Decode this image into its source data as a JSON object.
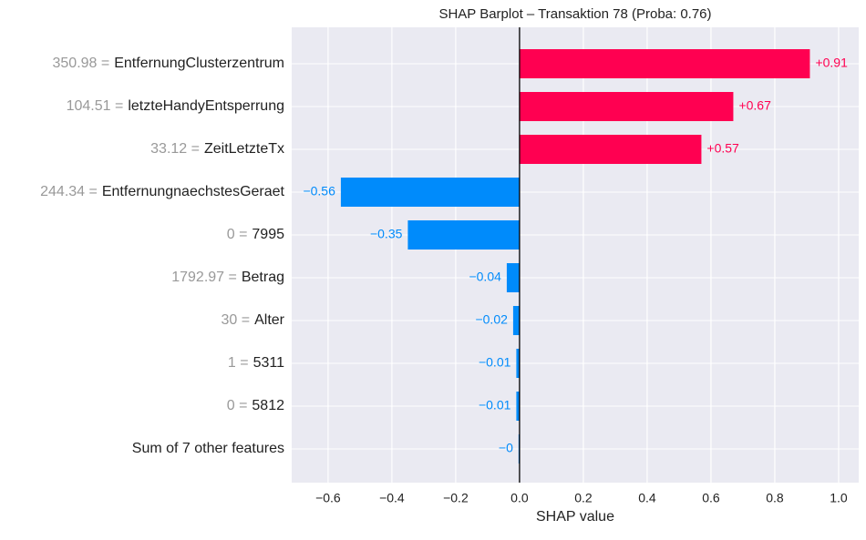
{
  "chart_data": {
    "type": "bar",
    "orientation": "horizontal",
    "title": "SHAP Barplot – Transaktion 78 (Proba: 0.76)",
    "x_label": "SHAP value",
    "feature_values": [
      "350.98 =",
      "104.51 =",
      "33.12 =",
      "244.34 =",
      "0 =",
      "1792.97 =",
      "30 =",
      "1 =",
      "0 =",
      null
    ],
    "categories": [
      "EntfernungClusterzentrum",
      "letzteHandyEntsperrung",
      "ZeitLetzteTx",
      "EntfernungnaechstesGeraet",
      "7995",
      "Betrag",
      "Alter",
      "5311",
      "5812",
      "Sum of 7 other features"
    ],
    "values": [
      0.91,
      0.67,
      0.57,
      -0.56,
      -0.35,
      -0.04,
      -0.02,
      -0.01,
      -0.01,
      -0.003
    ],
    "value_labels": [
      "+0.91",
      "+0.67",
      "+0.57",
      "−0.56",
      "−0.35",
      "−0.04",
      "−0.02",
      "−0.01",
      "−0.01",
      "−0"
    ],
    "positive_color": "#ff0051",
    "negative_color": "#008bfb",
    "xlim": [
      -0.714,
      1.063
    ],
    "xticks": [
      {
        "value": -0.6,
        "label": "−0.6"
      },
      {
        "value": -0.4,
        "label": "−0.4"
      },
      {
        "value": -0.2,
        "label": "−0.2"
      },
      {
        "value": 0,
        "label": "0.0"
      },
      0.2,
      0.4,
      0.6,
      0.8,
      {
        "value": 1,
        "label": "1.0"
      }
    ],
    "grid": true
  }
}
